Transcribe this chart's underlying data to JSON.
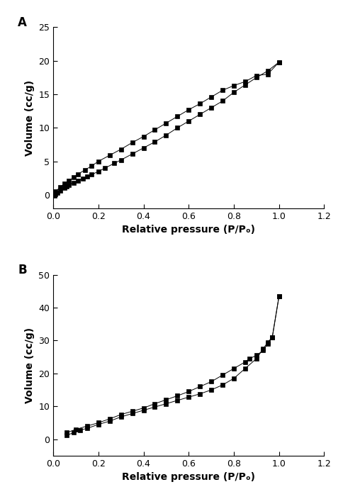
{
  "plot_A": {
    "label": "A",
    "adsorption_x": [
      0.005,
      0.01,
      0.02,
      0.03,
      0.05,
      0.06,
      0.07,
      0.09,
      0.11,
      0.13,
      0.15,
      0.17,
      0.2,
      0.23,
      0.27,
      0.3,
      0.35,
      0.4,
      0.45,
      0.5,
      0.55,
      0.6,
      0.65,
      0.7,
      0.75,
      0.8,
      0.85,
      0.9,
      0.95,
      1.0
    ],
    "adsorption_y": [
      -0.1,
      0.05,
      0.3,
      0.6,
      1.0,
      1.2,
      1.5,
      1.8,
      2.1,
      2.4,
      2.7,
      3.0,
      3.5,
      4.0,
      4.7,
      5.2,
      6.1,
      7.0,
      7.9,
      8.9,
      10.0,
      11.0,
      12.0,
      13.0,
      14.0,
      15.3,
      16.4,
      17.5,
      18.5,
      19.8
    ],
    "desorption_x": [
      1.0,
      0.95,
      0.9,
      0.85,
      0.8,
      0.75,
      0.7,
      0.65,
      0.6,
      0.55,
      0.5,
      0.45,
      0.4,
      0.35,
      0.3,
      0.25,
      0.2,
      0.17,
      0.14,
      0.11,
      0.09,
      0.07,
      0.05,
      0.03,
      0.01
    ],
    "desorption_y": [
      19.8,
      18.0,
      17.8,
      16.9,
      16.3,
      15.6,
      14.6,
      13.6,
      12.7,
      11.7,
      10.7,
      9.7,
      8.7,
      7.8,
      6.8,
      5.9,
      5.0,
      4.3,
      3.7,
      3.1,
      2.6,
      2.1,
      1.7,
      1.1,
      0.5
    ],
    "ylabel": "Volume (cc/g)",
    "xlabel": "Relative pressure (P/Pₒ)",
    "ylim": [
      -2,
      25
    ],
    "xlim": [
      0,
      1.2
    ],
    "yticks": [
      0,
      5,
      10,
      15,
      20,
      25
    ],
    "xticks": [
      0.0,
      0.2,
      0.4,
      0.6,
      0.8,
      1.0,
      1.2
    ]
  },
  "plot_B": {
    "label": "B",
    "adsorption_x": [
      0.06,
      0.09,
      0.12,
      0.15,
      0.2,
      0.25,
      0.3,
      0.35,
      0.4,
      0.45,
      0.5,
      0.55,
      0.6,
      0.65,
      0.7,
      0.75,
      0.8,
      0.85,
      0.9,
      0.93,
      0.95,
      0.97,
      1.0
    ],
    "adsorption_y": [
      1.2,
      2.0,
      2.8,
      3.3,
      4.5,
      5.5,
      6.8,
      7.8,
      8.8,
      9.8,
      10.8,
      11.8,
      12.8,
      13.8,
      15.0,
      16.5,
      18.5,
      21.5,
      24.5,
      27.5,
      29.5,
      31.0,
      43.5
    ],
    "desorption_x": [
      1.0,
      0.97,
      0.95,
      0.93,
      0.9,
      0.87,
      0.85,
      0.8,
      0.75,
      0.7,
      0.65,
      0.6,
      0.55,
      0.5,
      0.45,
      0.4,
      0.35,
      0.3,
      0.25,
      0.2,
      0.15,
      0.1,
      0.06
    ],
    "desorption_y": [
      43.5,
      31.0,
      29.0,
      27.0,
      25.5,
      24.5,
      23.5,
      21.5,
      19.5,
      17.5,
      16.0,
      14.5,
      13.2,
      12.0,
      10.8,
      9.5,
      8.5,
      7.5,
      6.2,
      5.0,
      4.0,
      3.0,
      2.0
    ],
    "ylabel": "Volume (cc/g)",
    "xlabel": "Relative pressure (P/Pₒ)",
    "ylim": [
      -5,
      50
    ],
    "xlim": [
      0,
      1.2
    ],
    "yticks": [
      0,
      10,
      20,
      30,
      40,
      50
    ],
    "xticks": [
      0.0,
      0.2,
      0.4,
      0.6,
      0.8,
      1.0,
      1.2
    ]
  },
  "marker": "s",
  "markersize": 5,
  "linewidth": 0.7,
  "color": "black",
  "markerfacecolor": "black",
  "axis_label_fontsize": 10,
  "tick_fontsize": 9,
  "panel_label_fontsize": 12,
  "background_color": "white",
  "figure_width": 4.84,
  "figure_height": 7.04,
  "dpi": 100
}
